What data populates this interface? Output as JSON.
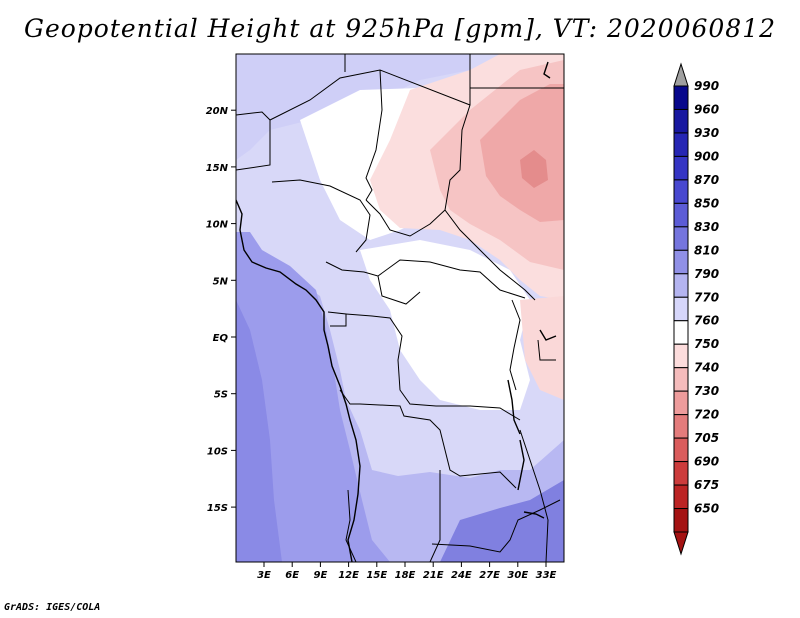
{
  "title": "Geopotential Height at 925hPa [gpm], VT: 2020060812",
  "credit": "GrADS: IGES/COLA",
  "map": {
    "region": "Central Africa",
    "lat_labels": [
      "20N",
      "15N",
      "10N",
      "5N",
      "EQ",
      "5S",
      "10S",
      "15S"
    ],
    "lon_labels": [
      "3E",
      "6E",
      "9E",
      "12E",
      "15E",
      "18E",
      "21E",
      "24E",
      "27E",
      "30E",
      "33E"
    ],
    "lon_range": [
      0,
      35
    ],
    "lat_range": [
      -20,
      24
    ]
  },
  "colorbar": {
    "labels": [
      "990",
      "960",
      "930",
      "900",
      "870",
      "850",
      "830",
      "810",
      "790",
      "770",
      "760",
      "750",
      "740",
      "730",
      "720",
      "705",
      "690",
      "675",
      "650"
    ],
    "colors": [
      "#08088c",
      "#1818a0",
      "#2626b4",
      "#3535c4",
      "#4848d0",
      "#5c5cd6",
      "#7575de",
      "#9090e6",
      "#b4b4f0",
      "#d6d6fa",
      "#ffffff",
      "#fcdcdc",
      "#f5bcbc",
      "#ee9c9c",
      "#e47c7c",
      "#da5c5c",
      "#cc3c3c",
      "#bc2424",
      "#a41212"
    ],
    "top_arrow_color": "#a0a0a0",
    "bottom_arrow_color": "#a41212"
  }
}
